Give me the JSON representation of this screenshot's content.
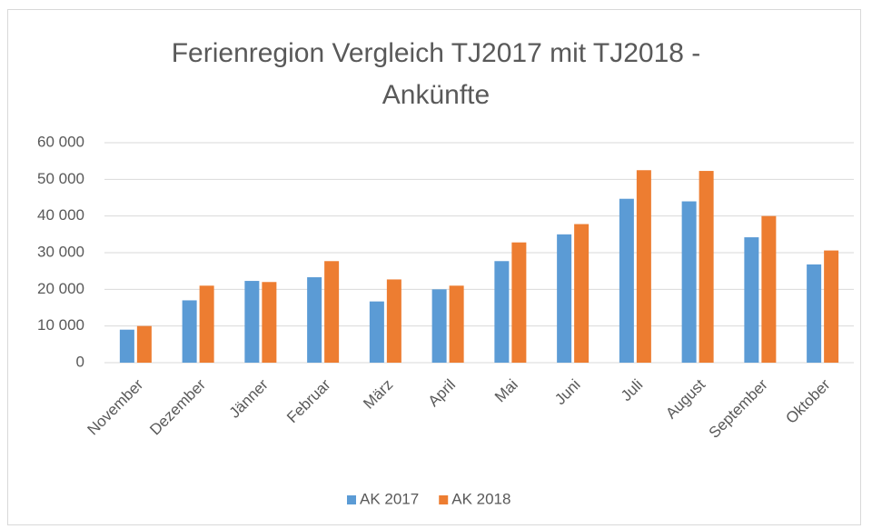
{
  "chart_data": {
    "type": "bar",
    "title": "Ferienregion Vergleich TJ2017 mit TJ2018 - Ankünfte",
    "categories": [
      "November",
      "Dezember",
      "Jänner",
      "Februar",
      "März",
      "April",
      "Mai",
      "Juni",
      "Juli",
      "August",
      "September",
      "Oktober"
    ],
    "series": [
      {
        "name": "AK 2017",
        "color": "#5b9bd5",
        "values": [
          9000,
          17000,
          22300,
          23300,
          16700,
          20000,
          27700,
          35000,
          44700,
          44000,
          34200,
          26800
        ]
      },
      {
        "name": "AK 2018",
        "color": "#ed7d31",
        "values": [
          10000,
          21000,
          22000,
          27700,
          22700,
          21000,
          32800,
          37800,
          52500,
          52300,
          40000,
          30600
        ]
      }
    ],
    "ylim": [
      0,
      60000
    ],
    "yticks": [
      0,
      {
        "value": 10000,
        "label": "10 000"
      },
      {
        "value": 20000,
        "label": "20 000"
      },
      {
        "value": 30000,
        "label": "30 000"
      },
      {
        "value": 40000,
        "label": "40 000"
      },
      {
        "value": 50000,
        "label": "50 000"
      },
      {
        "value": 60000,
        "label": "60 000"
      }
    ],
    "grid": true,
    "legend": "bottom"
  }
}
